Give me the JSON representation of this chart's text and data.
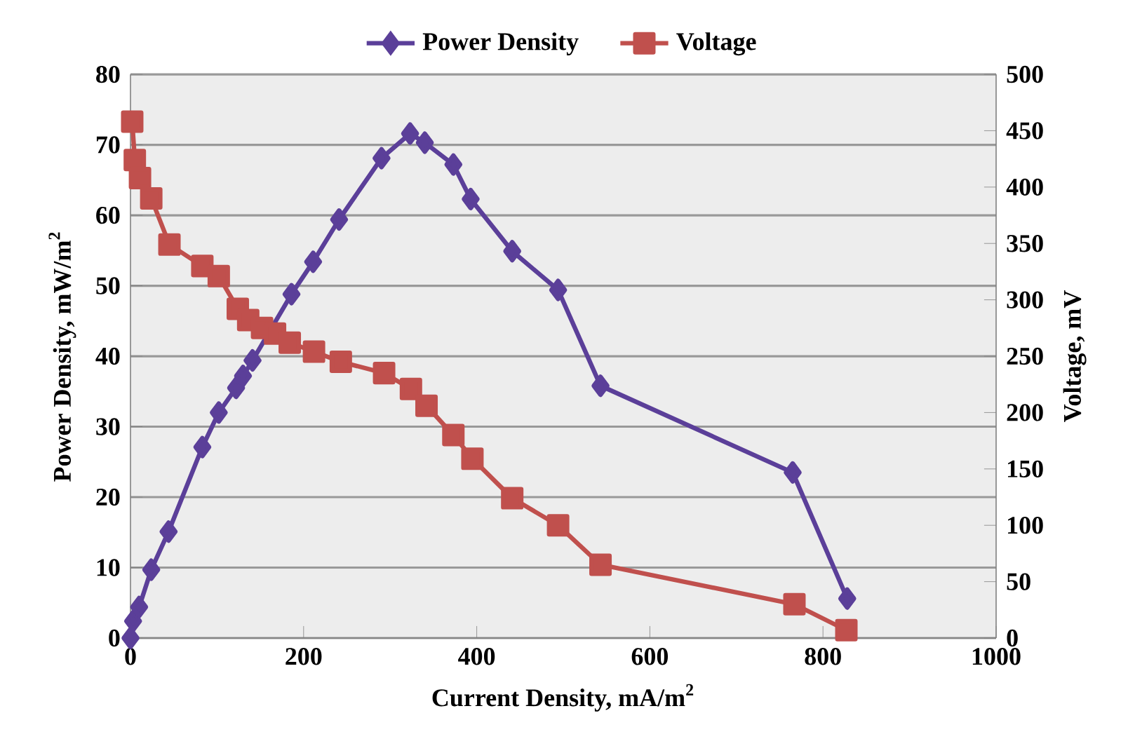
{
  "chart_data": {
    "type": "line",
    "xlabel": "Current Density, mA/m$^{2}$",
    "ylabel": "Power Density, mW/m$^{2}$",
    "y2label": "Voltage, mV",
    "xlim": [
      0,
      1000
    ],
    "xticks": [
      0,
      200,
      400,
      600,
      800,
      1000
    ],
    "ylim": [
      0,
      80
    ],
    "yticks": [
      0,
      10,
      20,
      30,
      40,
      50,
      60,
      70,
      80
    ],
    "y2lim": [
      0,
      500
    ],
    "y2ticks": [
      0,
      50,
      100,
      150,
      200,
      250,
      300,
      350,
      400,
      450,
      500
    ],
    "grid": "y",
    "legend": "top",
    "series": [
      {
        "name": "Power Density",
        "color": "#5b3f99",
        "marker": "diamond",
        "x": [
          0,
          3,
          10,
          24,
          44,
          83,
          102,
          122,
          130,
          141,
          162,
          186,
          211,
          241,
          290,
          323,
          340,
          373,
          393,
          441,
          494,
          543,
          765,
          828
        ],
        "values": [
          0,
          2.4,
          4.4,
          9.7,
          15.1,
          27.1,
          32.0,
          35.5,
          37.2,
          39.4,
          null,
          48.8,
          53.4,
          59.4,
          68.1,
          71.6,
          70.3,
          67.2,
          62.3,
          54.9,
          49.4,
          35.8,
          23.5,
          5.6
        ]
      },
      {
        "name": "Voltage",
        "color": "#c0504d",
        "marker": "square",
        "axis": "y2",
        "x": [
          2,
          5,
          11,
          24,
          45,
          83,
          102,
          124,
          136,
          152,
          167,
          184,
          212,
          243,
          293,
          324,
          342,
          373,
          395,
          441,
          494,
          543,
          767,
          827
        ],
        "values": [
          458,
          424,
          408,
          390,
          349,
          330,
          321,
          292,
          282,
          275,
          270,
          262,
          254,
          245,
          235,
          221,
          206,
          180,
          159,
          124,
          100,
          65,
          30,
          7
        ]
      }
    ]
  }
}
